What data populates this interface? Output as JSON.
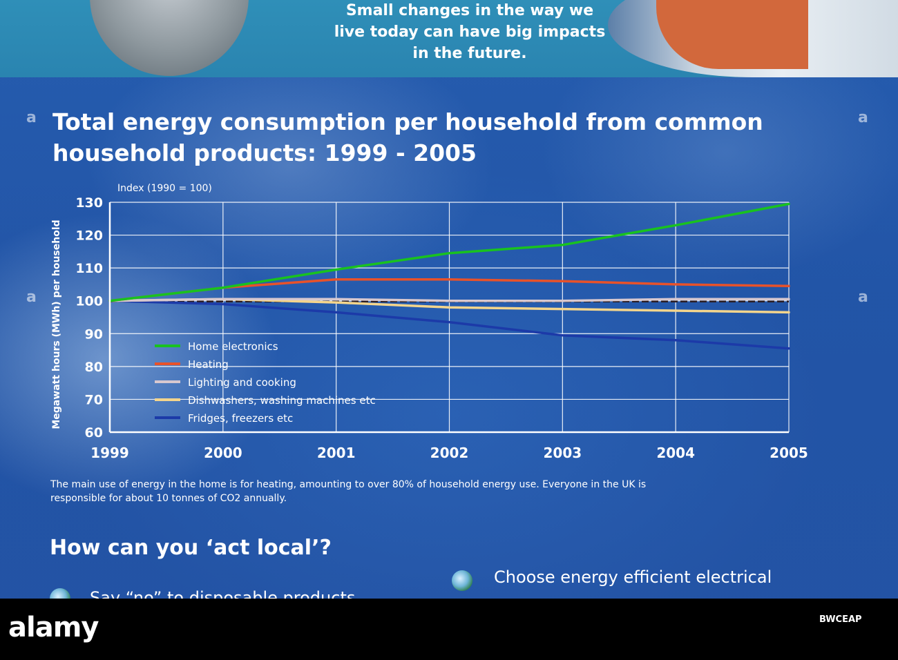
{
  "header": {
    "intro_lines": [
      "Small changes in the way we",
      "live today can have big impacts",
      "in the future."
    ]
  },
  "chart_data": {
    "type": "line",
    "title": "Total energy consumption per household from common household products: 1999 - 2005",
    "title_lines": [
      "Total energy consumption per household from common",
      "household products: 1999 - 2005"
    ],
    "subtitle": "Index (1990 = 100)",
    "xlabel": "",
    "ylabel": "Megawatt hours (MWh) per household",
    "x": [
      1999,
      2000,
      2001,
      2002,
      2003,
      2004,
      2005
    ],
    "xticks": [
      "1999",
      "2000",
      "2001",
      "2002",
      "2003",
      "2004",
      "2005"
    ],
    "yticks": [
      "60",
      "70",
      "80",
      "90",
      "100",
      "110",
      "120",
      "130"
    ],
    "ylim": [
      60,
      130
    ],
    "xlim": [
      1999,
      2005
    ],
    "grid": true,
    "legend_position": "lower-left",
    "series": [
      {
        "name": "Home electronics",
        "color": "#19c21f",
        "values": [
          100,
          104,
          109.5,
          114.5,
          117,
          123,
          129.5
        ]
      },
      {
        "name": "Heating",
        "color": "#e8522a",
        "values": [
          100,
          104,
          106.5,
          106.5,
          106,
          105,
          104.5
        ]
      },
      {
        "name": "Lighting and cooking",
        "color": "#d8c8cf",
        "values": [
          100,
          100.5,
          100.5,
          100,
          100,
          100.5,
          100.5
        ]
      },
      {
        "name": "Dishwashers, washing machines etc",
        "color": "#f4d58c",
        "values": [
          100,
          100.5,
          99.5,
          98,
          97.5,
          97,
          96.5
        ]
      },
      {
        "name": "Fridges, freezers etc",
        "color": "#1c3aa8",
        "values": [
          100,
          99,
          96.5,
          93.5,
          89.5,
          88,
          85.5
        ]
      }
    ],
    "reference_line": {
      "value": 100,
      "color": "#2a1c22"
    }
  },
  "caption_lines": [
    "The main use of energy in the home is for heating, amounting to over 80% of household energy use. Everyone in the UK is",
    "responsible for about 10 tonnes of CO2 annually."
  ],
  "act_local": {
    "heading": "How can you ‘act local’?",
    "bullets": [
      "Say “no” to disposable products",
      "Choose energy efficient electrical"
    ]
  },
  "side_marks": [
    "a",
    "a",
    "a",
    "a"
  ],
  "watermark": {
    "logo": "alamy",
    "image_id": "BWCEAP"
  },
  "colors": {
    "background": "#2a63b8",
    "top_band": "#2f8fb8",
    "grid": "#ffffff",
    "text": "#ffffff"
  }
}
